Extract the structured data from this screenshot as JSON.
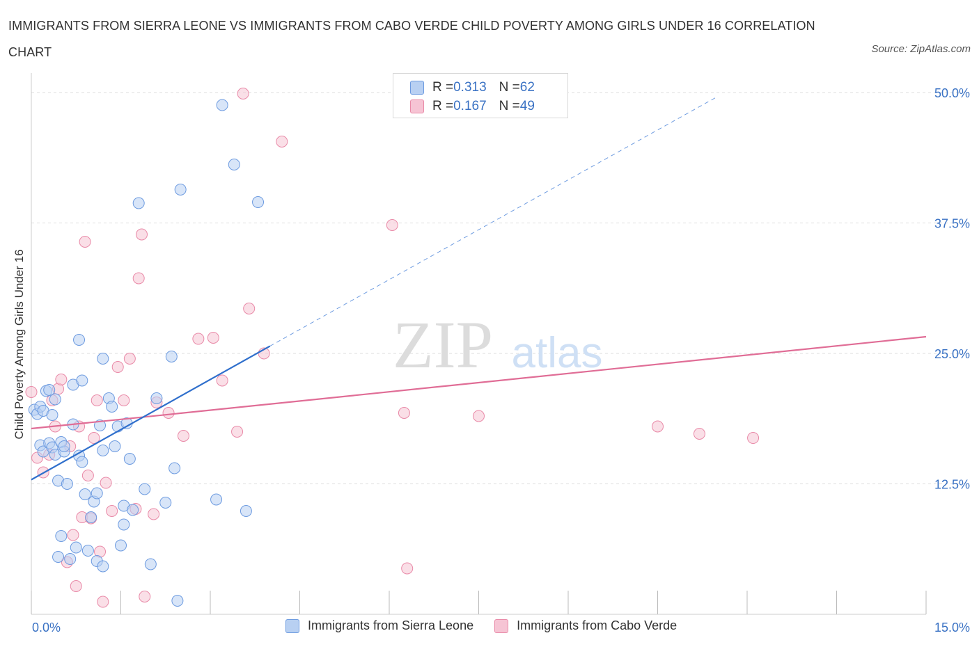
{
  "title": "IMMIGRANTS FROM SIERRA LEONE VS IMMIGRANTS FROM CABO VERDE CHILD POVERTY AMONG GIRLS UNDER 16 CORRELATION CHART",
  "source": "Source: ZipAtlas.com",
  "watermark": {
    "zip": "ZIP",
    "atlas": "atlas"
  },
  "legend_top": [
    {
      "r_label": "R = ",
      "r_value": "0.313",
      "n_label": "N = ",
      "n_value": "62"
    },
    {
      "r_label": "R = ",
      "r_value": "0.167",
      "n_label": "N = ",
      "n_value": "49"
    }
  ],
  "colors": {
    "blue_fill": "#b8d0f2",
    "blue_stroke": "#6d9be0",
    "blue_line": "#2f6fcc",
    "pink_fill": "#f6c4d4",
    "pink_stroke": "#e98aa8",
    "pink_line": "#e06d96",
    "axis_text": "#3a72c4",
    "grid": "#dddddd"
  },
  "chart_data": {
    "type": "scatter",
    "title": "IMMIGRANTS FROM SIERRA LEONE VS IMMIGRANTS FROM CABO VERDE CHILD POVERTY AMONG GIRLS UNDER 16 CORRELATION CHART",
    "xlabel": "",
    "ylabel": "Child Poverty Among Girls Under 16",
    "xlim": [
      0,
      15
    ],
    "ylim": [
      0,
      50
    ],
    "x_tick_labels": [
      "0.0%",
      "15.0%"
    ],
    "y_tick_labels": [
      "12.5%",
      "25.0%",
      "37.5%",
      "50.0%"
    ],
    "y_ticks": [
      12.5,
      25,
      37.5,
      50
    ],
    "series": [
      {
        "name": "Immigrants from Sierra Leone",
        "R": 0.313,
        "N": 62,
        "trend": {
          "x0": 0.0,
          "y0": 12.9,
          "x1": 4.0,
          "y1": 25.7,
          "dash_to_x": 11.5,
          "dash_to_y": 49.6
        },
        "points": [
          [
            0.05,
            19.6
          ],
          [
            0.1,
            19.2
          ],
          [
            0.15,
            19.9
          ],
          [
            0.15,
            16.2
          ],
          [
            0.2,
            19.5
          ],
          [
            0.2,
            15.6
          ],
          [
            0.25,
            21.4
          ],
          [
            0.3,
            16.4
          ],
          [
            0.3,
            21.5
          ],
          [
            0.35,
            16.0
          ],
          [
            0.35,
            19.1
          ],
          [
            0.4,
            15.3
          ],
          [
            0.4,
            20.6
          ],
          [
            0.45,
            12.8
          ],
          [
            0.45,
            5.5
          ],
          [
            0.5,
            7.5
          ],
          [
            0.5,
            16.5
          ],
          [
            0.55,
            15.6
          ],
          [
            0.55,
            16.1
          ],
          [
            0.6,
            12.5
          ],
          [
            0.65,
            5.3
          ],
          [
            0.7,
            22.0
          ],
          [
            0.7,
            18.2
          ],
          [
            0.75,
            6.4
          ],
          [
            0.8,
            26.3
          ],
          [
            0.8,
            15.2
          ],
          [
            0.85,
            14.6
          ],
          [
            0.85,
            22.4
          ],
          [
            0.9,
            11.5
          ],
          [
            0.95,
            6.1
          ],
          [
            1.0,
            9.3
          ],
          [
            1.05,
            10.8
          ],
          [
            1.1,
            5.1
          ],
          [
            1.1,
            11.6
          ],
          [
            1.15,
            18.1
          ],
          [
            1.2,
            4.6
          ],
          [
            1.2,
            24.5
          ],
          [
            1.2,
            15.7
          ],
          [
            1.3,
            20.7
          ],
          [
            1.35,
            19.9
          ],
          [
            1.4,
            16.1
          ],
          [
            1.45,
            18.0
          ],
          [
            1.5,
            6.6
          ],
          [
            1.55,
            10.4
          ],
          [
            1.55,
            8.6
          ],
          [
            1.6,
            18.3
          ],
          [
            1.65,
            14.9
          ],
          [
            1.7,
            10.0
          ],
          [
            1.8,
            39.4
          ],
          [
            1.9,
            12.0
          ],
          [
            2.0,
            4.8
          ],
          [
            2.1,
            20.7
          ],
          [
            2.25,
            10.7
          ],
          [
            2.35,
            24.7
          ],
          [
            2.4,
            14.0
          ],
          [
            2.45,
            1.3
          ],
          [
            2.5,
            40.7
          ],
          [
            3.1,
            11.0
          ],
          [
            3.2,
            48.8
          ],
          [
            3.4,
            43.1
          ],
          [
            3.6,
            9.9
          ],
          [
            3.8,
            39.5
          ]
        ]
      },
      {
        "name": "Immigrants from Cabo Verde",
        "R": 0.167,
        "N": 49,
        "trend": {
          "x0": 0.0,
          "y0": 17.8,
          "x1": 15.0,
          "y1": 26.6
        },
        "points": [
          [
            0.0,
            21.3
          ],
          [
            0.1,
            15.0
          ],
          [
            0.2,
            13.6
          ],
          [
            0.3,
            15.3
          ],
          [
            0.35,
            20.5
          ],
          [
            0.4,
            18.0
          ],
          [
            0.45,
            21.6
          ],
          [
            0.5,
            22.5
          ],
          [
            0.6,
            5.0
          ],
          [
            0.65,
            16.1
          ],
          [
            0.7,
            7.6
          ],
          [
            0.75,
            2.7
          ],
          [
            0.8,
            18.0
          ],
          [
            0.85,
            9.3
          ],
          [
            0.9,
            35.7
          ],
          [
            0.95,
            13.3
          ],
          [
            1.0,
            9.2
          ],
          [
            1.05,
            16.9
          ],
          [
            1.1,
            20.5
          ],
          [
            1.15,
            6.0
          ],
          [
            1.2,
            1.2
          ],
          [
            1.25,
            12.6
          ],
          [
            1.35,
            9.9
          ],
          [
            1.45,
            23.7
          ],
          [
            1.55,
            20.5
          ],
          [
            1.65,
            24.5
          ],
          [
            1.75,
            10.1
          ],
          [
            1.8,
            32.2
          ],
          [
            1.85,
            36.4
          ],
          [
            1.9,
            1.7
          ],
          [
            2.05,
            9.6
          ],
          [
            2.1,
            20.3
          ],
          [
            2.3,
            19.3
          ],
          [
            2.55,
            17.1
          ],
          [
            2.8,
            26.4
          ],
          [
            3.05,
            26.5
          ],
          [
            3.2,
            22.4
          ],
          [
            3.45,
            17.5
          ],
          [
            3.55,
            49.9
          ],
          [
            3.65,
            29.3
          ],
          [
            3.9,
            25.0
          ],
          [
            4.2,
            45.3
          ],
          [
            6.05,
            37.3
          ],
          [
            6.25,
            19.3
          ],
          [
            6.3,
            4.4
          ],
          [
            7.5,
            19.0
          ],
          [
            10.5,
            18.0
          ],
          [
            11.2,
            17.3
          ],
          [
            12.1,
            16.9
          ]
        ]
      }
    ]
  },
  "legend_bottom": [
    "Immigrants from Sierra Leone",
    "Immigrants from Cabo Verde"
  ]
}
